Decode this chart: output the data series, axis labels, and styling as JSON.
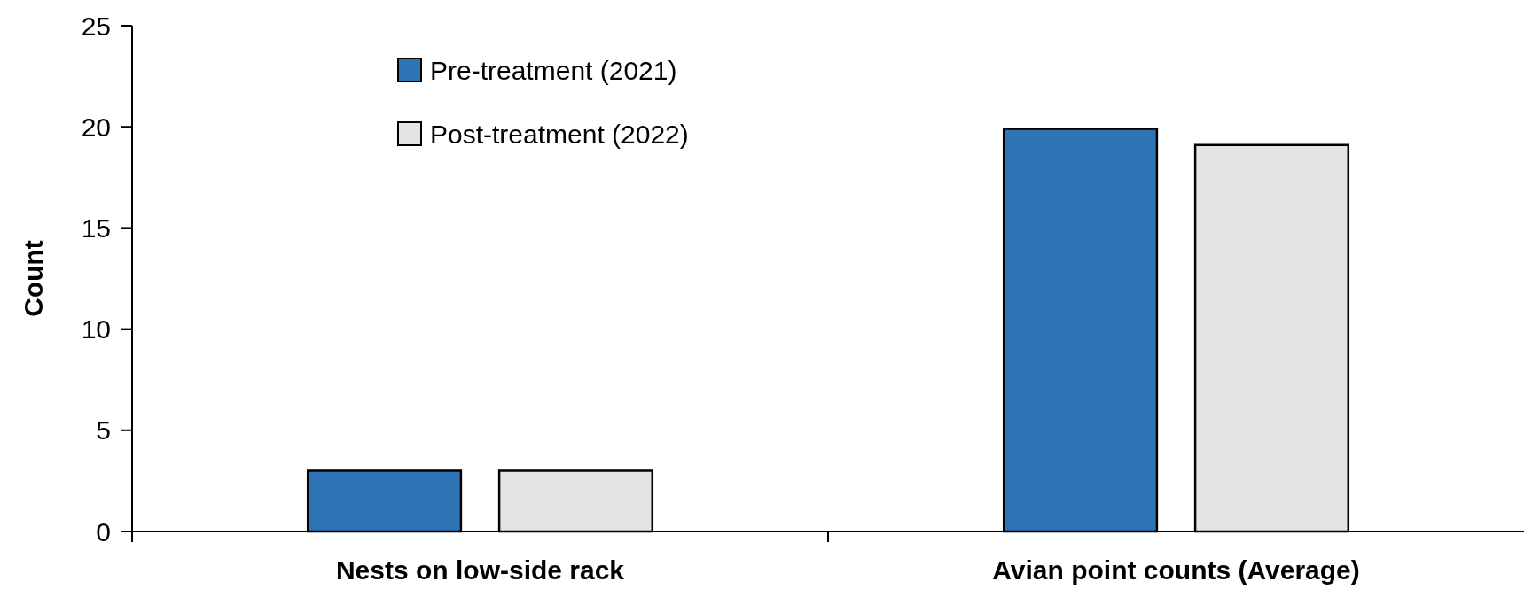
{
  "chart_data": {
    "type": "bar",
    "ylabel": "Count",
    "categories": [
      "Nests on low-side rack",
      "Avian point counts (Average)"
    ],
    "series": [
      {
        "name": "Pre-treatment (2021)",
        "color": "#2e75b6",
        "values": [
          3,
          19.9
        ]
      },
      {
        "name": "Post-treatment (2022)",
        "color": "#e4e4e4",
        "values": [
          3,
          19.1
        ]
      }
    ],
    "ylim": [
      0,
      25
    ],
    "yticks": [
      0,
      5,
      10,
      15,
      20,
      25
    ],
    "grid": false,
    "legend": "top left"
  }
}
